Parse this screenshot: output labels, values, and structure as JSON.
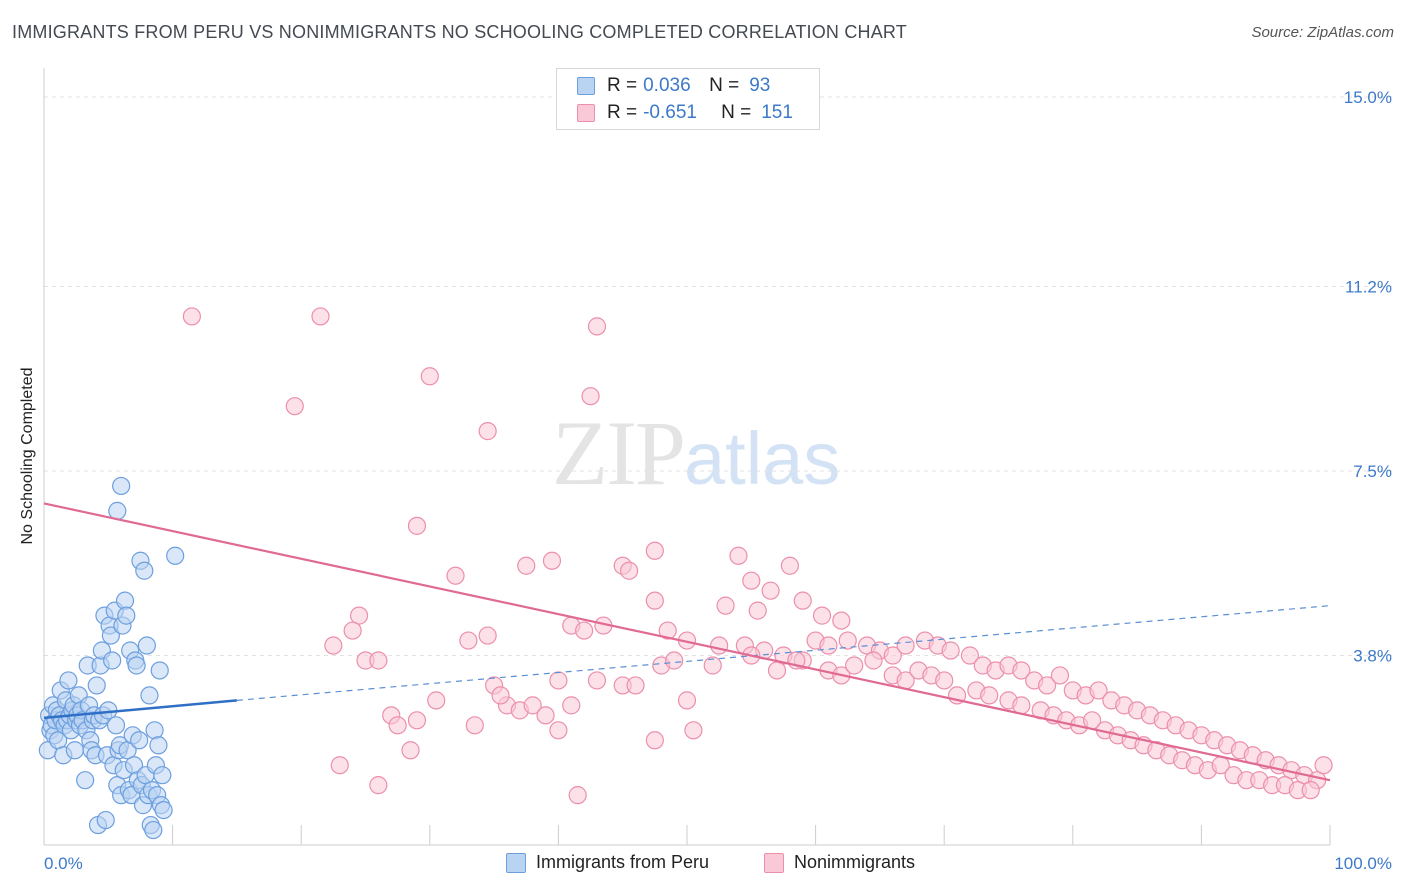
{
  "title": "IMMIGRANTS FROM PERU VS NONIMMIGRANTS NO SCHOOLING COMPLETED CORRELATION CHART",
  "source": "Source: ZipAtlas.com",
  "watermark": {
    "zip": "ZIP",
    "atlas": "atlas"
  },
  "legend_top": {
    "rows": [
      {
        "r_label": "R =",
        "r_value": "0.036",
        "n_label": "N =",
        "n_value": "93"
      },
      {
        "r_label": "R =",
        "r_value": "-0.651",
        "n_label": "N =",
        "n_value": "151"
      }
    ]
  },
  "chart_data": {
    "type": "scatter",
    "xlabel": "",
    "ylabel": "No Schooling Completed",
    "xlim": [
      0,
      100
    ],
    "ylim": [
      0,
      15.0
    ],
    "x_tick_labels": [
      "0.0%",
      "100.0%"
    ],
    "y_ticks": [
      3.8,
      7.5,
      11.2,
      15.0
    ],
    "y_tick_labels": [
      "3.8%",
      "7.5%",
      "11.2%",
      "15.0%"
    ],
    "grid": true,
    "legend": "bottom-center",
    "series": [
      {
        "name": "Immigrants from Peru",
        "color": "#6d9fdf",
        "fill": "#b9d3f3",
        "trend": {
          "x0": 0,
          "y0": 2.55,
          "x1": 15,
          "y1": 2.9,
          "solid_to": 15,
          "dashed_to": 100,
          "y_at_100": 4.8
        },
        "points": [
          [
            0.3,
            1.9
          ],
          [
            0.4,
            2.6
          ],
          [
            0.5,
            2.3
          ],
          [
            0.6,
            2.4
          ],
          [
            0.7,
            2.8
          ],
          [
            0.8,
            2.2
          ],
          [
            0.9,
            2.5
          ],
          [
            1.0,
            2.7
          ],
          [
            1.1,
            2.1
          ],
          [
            1.2,
            2.6
          ],
          [
            1.3,
            3.1
          ],
          [
            1.4,
            2.5
          ],
          [
            1.5,
            1.8
          ],
          [
            1.6,
            2.4
          ],
          [
            1.7,
            2.9
          ],
          [
            1.8,
            2.5
          ],
          [
            1.9,
            3.3
          ],
          [
            2.0,
            2.6
          ],
          [
            2.1,
            2.3
          ],
          [
            2.2,
            2.7
          ],
          [
            2.3,
            2.8
          ],
          [
            2.4,
            1.9
          ],
          [
            2.5,
            2.5
          ],
          [
            2.6,
            2.6
          ],
          [
            2.7,
            3.0
          ],
          [
            2.8,
            2.4
          ],
          [
            2.9,
            2.7
          ],
          [
            3.0,
            2.5
          ],
          [
            3.2,
            1.3
          ],
          [
            3.3,
            2.3
          ],
          [
            3.4,
            3.6
          ],
          [
            3.5,
            2.8
          ],
          [
            3.6,
            2.1
          ],
          [
            3.7,
            1.9
          ],
          [
            3.8,
            2.5
          ],
          [
            3.9,
            2.6
          ],
          [
            4.0,
            1.8
          ],
          [
            4.1,
            3.2
          ],
          [
            4.2,
            0.4
          ],
          [
            4.3,
            2.5
          ],
          [
            4.4,
            3.6
          ],
          [
            4.5,
            3.9
          ],
          [
            4.6,
            2.6
          ],
          [
            4.7,
            4.6
          ],
          [
            4.8,
            0.5
          ],
          [
            4.9,
            1.8
          ],
          [
            5.0,
            2.7
          ],
          [
            5.1,
            4.4
          ],
          [
            5.2,
            4.2
          ],
          [
            5.3,
            3.7
          ],
          [
            5.4,
            1.6
          ],
          [
            5.5,
            4.7
          ],
          [
            5.6,
            2.4
          ],
          [
            5.7,
            1.2
          ],
          [
            5.8,
            1.9
          ],
          [
            5.9,
            2.0
          ],
          [
            6.0,
            1.0
          ],
          [
            6.1,
            4.4
          ],
          [
            6.2,
            1.5
          ],
          [
            6.3,
            4.9
          ],
          [
            6.4,
            4.6
          ],
          [
            6.5,
            1.9
          ],
          [
            6.6,
            1.1
          ],
          [
            6.7,
            3.9
          ],
          [
            6.8,
            1.0
          ],
          [
            6.9,
            2.2
          ],
          [
            7.0,
            1.6
          ],
          [
            7.1,
            3.7
          ],
          [
            7.2,
            3.6
          ],
          [
            7.3,
            1.3
          ],
          [
            7.4,
            2.1
          ],
          [
            7.5,
            5.7
          ],
          [
            7.6,
            1.2
          ],
          [
            7.7,
            0.8
          ],
          [
            7.8,
            5.5
          ],
          [
            7.9,
            1.4
          ],
          [
            8.0,
            4.0
          ],
          [
            8.1,
            1.0
          ],
          [
            8.2,
            3.0
          ],
          [
            8.3,
            0.4
          ],
          [
            8.4,
            1.1
          ],
          [
            8.5,
            0.3
          ],
          [
            8.6,
            2.3
          ],
          [
            8.7,
            1.6
          ],
          [
            8.8,
            1.0
          ],
          [
            8.9,
            2.0
          ],
          [
            9.0,
            3.5
          ],
          [
            9.1,
            0.8
          ],
          [
            9.2,
            1.4
          ],
          [
            9.3,
            0.7
          ],
          [
            10.2,
            5.8
          ],
          [
            6.0,
            7.2
          ],
          [
            5.7,
            6.7
          ]
        ]
      },
      {
        "name": "Nonimmigrants",
        "color": "#ec8fab",
        "fill": "#f9c9d7",
        "trend": {
          "x0": 0,
          "y0": 6.85,
          "x1": 100,
          "y1": 1.3
        },
        "points": [
          [
            11.5,
            10.6
          ],
          [
            21.5,
            10.6
          ],
          [
            19.5,
            8.8
          ],
          [
            30,
            9.4
          ],
          [
            34.5,
            8.3
          ],
          [
            43,
            10.4
          ],
          [
            42.5,
            9.0
          ],
          [
            29,
            6.4
          ],
          [
            32,
            5.4
          ],
          [
            37.5,
            5.6
          ],
          [
            39.5,
            5.7
          ],
          [
            45,
            5.6
          ],
          [
            45.5,
            5.5
          ],
          [
            47.5,
            5.9
          ],
          [
            54,
            5.8
          ],
          [
            58,
            5.6
          ],
          [
            55,
            5.3
          ],
          [
            56.5,
            5.1
          ],
          [
            47.5,
            4.9
          ],
          [
            53,
            4.8
          ],
          [
            55.5,
            4.7
          ],
          [
            59,
            4.9
          ],
          [
            60.5,
            4.6
          ],
          [
            62,
            4.5
          ],
          [
            24.5,
            4.6
          ],
          [
            24,
            4.3
          ],
          [
            41,
            4.4
          ],
          [
            42,
            4.3
          ],
          [
            43.5,
            4.4
          ],
          [
            48.5,
            4.3
          ],
          [
            50,
            4.1
          ],
          [
            52.5,
            4.0
          ],
          [
            54.5,
            4.0
          ],
          [
            56,
            3.9
          ],
          [
            57.5,
            3.8
          ],
          [
            59,
            3.7
          ],
          [
            60,
            4.1
          ],
          [
            61,
            4.0
          ],
          [
            62.5,
            4.1
          ],
          [
            64,
            4.0
          ],
          [
            65,
            3.9
          ],
          [
            66,
            3.8
          ],
          [
            67,
            4.0
          ],
          [
            68.5,
            4.1
          ],
          [
            69.5,
            4.0
          ],
          [
            70.5,
            3.9
          ],
          [
            72,
            3.8
          ],
          [
            73,
            3.6
          ],
          [
            74,
            3.5
          ],
          [
            75,
            3.6
          ],
          [
            76,
            3.5
          ],
          [
            77,
            3.3
          ],
          [
            78,
            3.2
          ],
          [
            79,
            3.4
          ],
          [
            80,
            3.1
          ],
          [
            81,
            3.0
          ],
          [
            82,
            3.1
          ],
          [
            83,
            2.9
          ],
          [
            84,
            2.8
          ],
          [
            85,
            2.7
          ],
          [
            86,
            2.6
          ],
          [
            87,
            2.5
          ],
          [
            88,
            2.4
          ],
          [
            89,
            2.3
          ],
          [
            90,
            2.2
          ],
          [
            91,
            2.1
          ],
          [
            92,
            2.0
          ],
          [
            93,
            1.9
          ],
          [
            94,
            1.8
          ],
          [
            95,
            1.7
          ],
          [
            96,
            1.6
          ],
          [
            97,
            1.5
          ],
          [
            98,
            1.4
          ],
          [
            99,
            1.3
          ],
          [
            22.5,
            4.0
          ],
          [
            25,
            3.7
          ],
          [
            26,
            3.7
          ],
          [
            33,
            4.1
          ],
          [
            34.5,
            4.2
          ],
          [
            35,
            3.2
          ],
          [
            36,
            2.8
          ],
          [
            37,
            2.7
          ],
          [
            38,
            2.8
          ],
          [
            39,
            2.6
          ],
          [
            40,
            3.3
          ],
          [
            41,
            2.8
          ],
          [
            43,
            3.3
          ],
          [
            45,
            3.2
          ],
          [
            46,
            3.2
          ],
          [
            48,
            3.6
          ],
          [
            49,
            3.7
          ],
          [
            50.5,
            2.3
          ],
          [
            52,
            3.6
          ],
          [
            55,
            3.8
          ],
          [
            57,
            3.5
          ],
          [
            58.5,
            3.7
          ],
          [
            61,
            3.5
          ],
          [
            62,
            3.4
          ],
          [
            63,
            3.6
          ],
          [
            64.5,
            3.7
          ],
          [
            66,
            3.4
          ],
          [
            67,
            3.3
          ],
          [
            68,
            3.5
          ],
          [
            69,
            3.4
          ],
          [
            70,
            3.3
          ],
          [
            71,
            3.0
          ],
          [
            72.5,
            3.1
          ],
          [
            73.5,
            3.0
          ],
          [
            75,
            2.9
          ],
          [
            76,
            2.8
          ],
          [
            77.5,
            2.7
          ],
          [
            78.5,
            2.6
          ],
          [
            79.5,
            2.5
          ],
          [
            80.5,
            2.4
          ],
          [
            81.5,
            2.5
          ],
          [
            82.5,
            2.3
          ],
          [
            83.5,
            2.2
          ],
          [
            84.5,
            2.1
          ],
          [
            85.5,
            2.0
          ],
          [
            86.5,
            1.9
          ],
          [
            87.5,
            1.8
          ],
          [
            88.5,
            1.7
          ],
          [
            89.5,
            1.6
          ],
          [
            90.5,
            1.5
          ],
          [
            91.5,
            1.6
          ],
          [
            92.5,
            1.4
          ],
          [
            93.5,
            1.3
          ],
          [
            94.5,
            1.3
          ],
          [
            95.5,
            1.2
          ],
          [
            96.5,
            1.2
          ],
          [
            97.5,
            1.1
          ],
          [
            98.5,
            1.1
          ],
          [
            99.5,
            1.6
          ],
          [
            27,
            2.6
          ],
          [
            27.5,
            2.4
          ],
          [
            29,
            2.5
          ],
          [
            30.5,
            2.9
          ],
          [
            23,
            1.6
          ],
          [
            26,
            1.2
          ],
          [
            28.5,
            1.9
          ],
          [
            40,
            2.3
          ],
          [
            41.5,
            1.0
          ],
          [
            47.5,
            2.1
          ],
          [
            50,
            2.9
          ],
          [
            35.5,
            3.0
          ],
          [
            33.5,
            2.4
          ]
        ]
      }
    ]
  },
  "legend_bottom": {
    "items": [
      "Immigrants from Peru",
      "Nonimmigrants"
    ]
  }
}
